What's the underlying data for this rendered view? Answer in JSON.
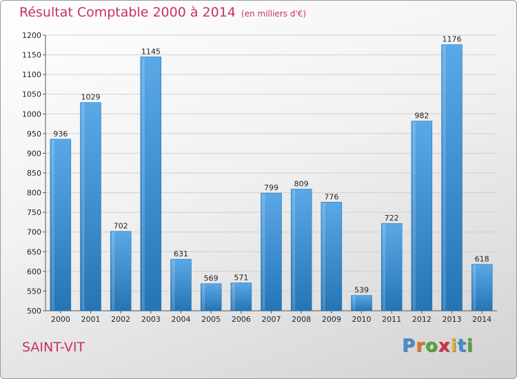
{
  "header": {
    "title": "Résultat Comptable 2000 à 2014",
    "subtitle": "(en milliers d'€)"
  },
  "footer": {
    "town": "SAINT-VIT",
    "logo_letters": [
      "P",
      "r",
      "o",
      "x",
      "i",
      "t",
      "i"
    ],
    "logo_colors": [
      "#3f8fd0",
      "#e0762a",
      "#55a531",
      "#d03040",
      "#e8b326",
      "#3f8fd0",
      "#55a531"
    ]
  },
  "colors": {
    "title": "#c8325a",
    "bar_light": "#5aa8e6",
    "bar_dark": "#2574b4",
    "grid": "#cfcfcf"
  },
  "chart_data": {
    "type": "bar",
    "title": "Résultat Comptable 2000 à 2014",
    "subtitle": "(en milliers d'€)",
    "categories": [
      "2000",
      "2001",
      "2002",
      "2003",
      "2004",
      "2005",
      "2006",
      "2007",
      "2008",
      "2009",
      "2010",
      "2011",
      "2012",
      "2013",
      "2014"
    ],
    "values": [
      936,
      1029,
      702,
      1145,
      631,
      569,
      571,
      799,
      809,
      776,
      539,
      722,
      982,
      1176,
      618
    ],
    "ylim": [
      500,
      1200
    ],
    "yticks": [
      500,
      550,
      600,
      650,
      700,
      750,
      800,
      850,
      900,
      950,
      1000,
      1050,
      1100,
      1150,
      1200
    ],
    "grid": true,
    "legend": "none"
  }
}
